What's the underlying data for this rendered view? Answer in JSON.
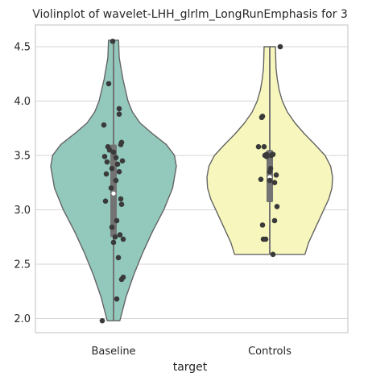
{
  "chart_data": {
    "type": "violin",
    "title": "Violinplot of wavelet-LHH_glrlm_LongRunEmphasis for 3",
    "xlabel": "target",
    "ylabel": "",
    "ylim": [
      1.87,
      4.7
    ],
    "y_ticks": [
      "2.0",
      "2.5",
      "3.0",
      "3.5",
      "4.0",
      "4.5"
    ],
    "grid": "horizontal",
    "categories": [
      "Baseline",
      "Controls"
    ],
    "colors": {
      "Baseline": "#93c9bd",
      "Controls": "#f7f7bd",
      "outline": "#646464",
      "points": "#3a3a3a",
      "box": "#737373",
      "grid": "#d4d4d4",
      "frame": "#cccccc"
    },
    "series": [
      {
        "category": "Baseline",
        "range": [
          1.98,
          4.56
        ],
        "box": {
          "q1": 2.75,
          "median": 3.15,
          "q3": 3.6
        },
        "profile": [
          [
            1.98,
            0.1
          ],
          [
            2.2,
            0.2
          ],
          [
            2.4,
            0.32
          ],
          [
            2.6,
            0.46
          ],
          [
            2.8,
            0.62
          ],
          [
            3.0,
            0.8
          ],
          [
            3.2,
            0.94
          ],
          [
            3.4,
            1.0
          ],
          [
            3.5,
            0.97
          ],
          [
            3.6,
            0.84
          ],
          [
            3.7,
            0.62
          ],
          [
            3.8,
            0.42
          ],
          [
            3.9,
            0.3
          ],
          [
            4.0,
            0.23
          ],
          [
            4.1,
            0.19
          ],
          [
            4.2,
            0.15
          ],
          [
            4.3,
            0.12
          ],
          [
            4.4,
            0.09
          ],
          [
            4.56,
            0.08
          ]
        ],
        "points": [
          [
            -0.01,
            4.55
          ],
          [
            -0.06,
            4.16
          ],
          [
            0.07,
            3.93
          ],
          [
            0.07,
            3.88
          ],
          [
            -0.12,
            3.78
          ],
          [
            0.1,
            3.62
          ],
          [
            0.09,
            3.6
          ],
          [
            -0.07,
            3.58
          ],
          [
            -0.05,
            3.55
          ],
          [
            0.0,
            3.53
          ],
          [
            -0.11,
            3.49
          ],
          [
            0.03,
            3.48
          ],
          [
            0.11,
            3.45
          ],
          [
            -0.08,
            3.44
          ],
          [
            0.05,
            3.42
          ],
          [
            -0.02,
            3.38
          ],
          [
            0.07,
            3.35
          ],
          [
            -0.09,
            3.33
          ],
          [
            0.03,
            3.27
          ],
          [
            -0.03,
            3.2
          ],
          [
            0.09,
            3.1
          ],
          [
            -0.1,
            3.08
          ],
          [
            0.1,
            3.05
          ],
          [
            0.04,
            2.9
          ],
          [
            -0.02,
            2.84
          ],
          [
            0.08,
            2.77
          ],
          [
            0.02,
            2.75
          ],
          [
            0.12,
            2.73
          ],
          [
            0.0,
            2.7
          ],
          [
            0.06,
            2.56
          ],
          [
            0.12,
            2.38
          ],
          [
            0.1,
            2.36
          ],
          [
            0.04,
            2.18
          ],
          [
            -0.14,
            1.98
          ]
        ]
      },
      {
        "category": "Controls",
        "range": [
          2.59,
          4.5
        ],
        "box": {
          "q1": 3.07,
          "median": 3.3,
          "q3": 3.55
        },
        "profile": [
          [
            2.59,
            0.56
          ],
          [
            2.7,
            0.62
          ],
          [
            2.8,
            0.7
          ],
          [
            2.9,
            0.78
          ],
          [
            3.0,
            0.86
          ],
          [
            3.1,
            0.94
          ],
          [
            3.2,
            0.99
          ],
          [
            3.3,
            1.0
          ],
          [
            3.4,
            0.97
          ],
          [
            3.5,
            0.88
          ],
          [
            3.6,
            0.72
          ],
          [
            3.7,
            0.55
          ],
          [
            3.8,
            0.4
          ],
          [
            3.9,
            0.28
          ],
          [
            4.0,
            0.2
          ],
          [
            4.1,
            0.15
          ],
          [
            4.2,
            0.12
          ],
          [
            4.3,
            0.1
          ],
          [
            4.5,
            0.09
          ]
        ],
        "points": [
          [
            0.13,
            4.5
          ],
          [
            -0.09,
            3.86
          ],
          [
            -0.1,
            3.85
          ],
          [
            -0.14,
            3.58
          ],
          [
            -0.07,
            3.58
          ],
          [
            -0.04,
            3.51
          ],
          [
            0.04,
            3.51
          ],
          [
            0.02,
            3.5
          ],
          [
            -0.06,
            3.5
          ],
          [
            -0.04,
            3.49
          ],
          [
            0.01,
            3.38
          ],
          [
            0.0,
            3.35
          ],
          [
            0.08,
            3.32
          ],
          [
            -0.11,
            3.28
          ],
          [
            0.0,
            3.27
          ],
          [
            0.06,
            3.25
          ],
          [
            0.09,
            3.03
          ],
          [
            0.06,
            2.9
          ],
          [
            -0.09,
            2.86
          ],
          [
            -0.08,
            2.73
          ],
          [
            -0.05,
            2.73
          ],
          [
            0.04,
            2.59
          ]
        ]
      }
    ]
  }
}
